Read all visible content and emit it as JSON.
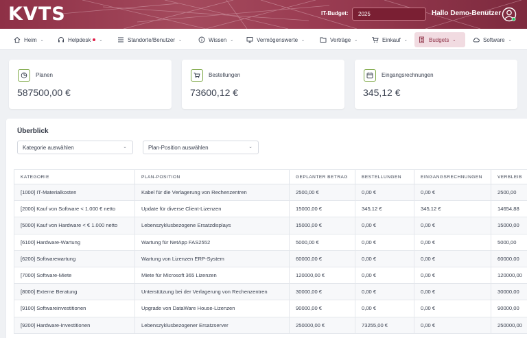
{
  "header": {
    "logo": "KVTS",
    "budget_label": "IT-Budget:",
    "budget_year": "2025",
    "greeting": "Hallo Demo-Benutzer"
  },
  "nav": [
    {
      "label": "Heim",
      "icon": "home-icon"
    },
    {
      "label": "Helpdesk",
      "icon": "headset-icon"
    },
    {
      "label": "Standorte/Benutzer",
      "icon": "list-icon"
    },
    {
      "label": "Wissen",
      "icon": "info-icon"
    },
    {
      "label": "Vermögenswerte",
      "icon": "monitor-icon"
    },
    {
      "label": "Verträge",
      "icon": "folder-icon"
    },
    {
      "label": "Einkauf",
      "icon": "cart-icon"
    },
    {
      "label": "Budgets",
      "icon": "budget-icon"
    },
    {
      "label": "Software",
      "icon": "cloud-icon"
    }
  ],
  "cards": [
    {
      "label": "Planen",
      "value": "587500,00 €",
      "icon": "pie-chart-icon"
    },
    {
      "label": "Bestellungen",
      "value": "73600,12 €",
      "icon": "cart-icon"
    },
    {
      "label": "Eingangsrechnungen",
      "value": "345,12 €",
      "icon": "calendar-icon"
    }
  ],
  "overview": {
    "title": "Überblick",
    "filter_category": "Kategorie auswählen",
    "filter_position": "Plan-Position auswählen",
    "columns": [
      "KATEGORIE",
      "PLAN-POSITION",
      "GEPLANTER BETRAG",
      "BESTELLUNGEN",
      "EINGANGSRECHNUNGEN",
      "VERBLEIB"
    ],
    "rows": [
      [
        "[1000] IT-Materialkosten",
        "Kabel für die Verlagerung von Rechenzentren",
        "2500,00 €",
        "0,00 €",
        "0,00 €",
        "2500,00"
      ],
      [
        "[2000] Kauf von Software < 1.000 € netto",
        "Update für diverse Client-Lizenzen",
        "15000,00 €",
        "345,12 €",
        "345,12 €",
        "14654,88"
      ],
      [
        "[5000] Kauf von Hardware < € 1.000 netto",
        "Lebenszyklusbezogene Ersatzdisplays",
        "15000,00 €",
        "0,00 €",
        "0,00 €",
        "15000,00"
      ],
      [
        "[6100] Hardware-Wartung",
        "Wartung für NetApp FAS2552",
        "5000,00 €",
        "0,00 €",
        "0,00 €",
        "5000,00"
      ],
      [
        "[6200] Softwarewartung",
        "Wartung von Lizenzen ERP-System",
        "60000,00 €",
        "0,00 €",
        "0,00 €",
        "60000,00"
      ],
      [
        "[7000] Software-Miete",
        "Miete für Microsoft 365 Lizenzen",
        "120000,00 €",
        "0,00 €",
        "0,00 €",
        "120000,00"
      ],
      [
        "[8000] Externe Beratung",
        "Unterstützung bei der Verlagerung von Rechenzentren",
        "30000,00 €",
        "0,00 €",
        "0,00 €",
        "30000,00"
      ],
      [
        "[9100] Softwareinvestitionen",
        "Upgrade von DataWare House-Lizenzen",
        "90000,00 €",
        "0,00 €",
        "0,00 €",
        "90000,00"
      ],
      [
        "[9200] Hardware-Investitionen",
        "Lebenszyklusbezogener Ersatzserver",
        "250000,00 €",
        "73255,00 €",
        "0,00 €",
        "250000,00"
      ]
    ]
  }
}
